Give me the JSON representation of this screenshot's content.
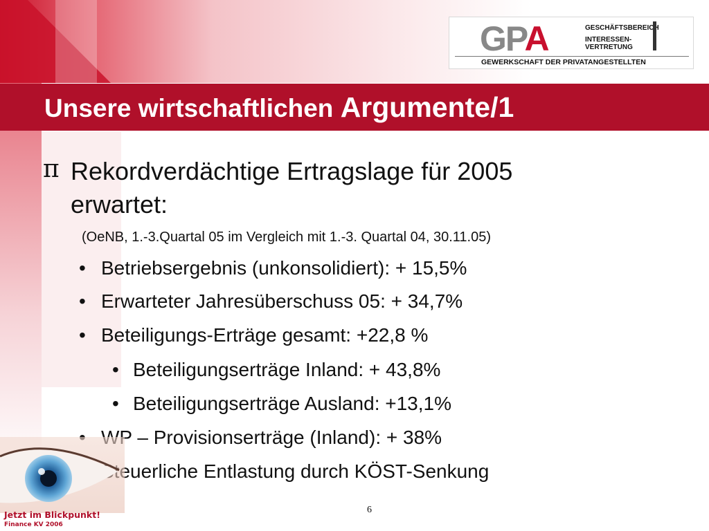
{
  "logo": {
    "letters_gp": "GP",
    "letters_a": "A",
    "line1": "GESCHÄFTSBEREICH",
    "line2": "INTERESSEN-",
    "line3": "VERTRETUNG",
    "subtitle": "GEWERKSCHAFT DER PRIVATANGESTELLTEN"
  },
  "slide": {
    "title_part1": "Unsere wirtschaftlichen ",
    "title_part2": "Argumente/1",
    "main_bullet_symbol": "π",
    "main_point_line1": "Rekordverdächtige Ertragslage für 2005",
    "main_point_line2": "erwartet:",
    "source": "(OeNB, 1.-3.Quartal 05 im Vergleich mit 1.-3. Quartal 04, 30.11.05)",
    "bullet_symbol": "•",
    "bullets": [
      "Betriebsergebnis (unkonsolidiert): + 15,5%",
      "Erwarteter Jahresüberschuss 05: + 34,7%",
      "Beteiligungs-Erträge gesamt: +22,8 %",
      "Beteiligungserträge Inland: + 43,8%",
      "Beteiligungserträge Ausland: +13,1%",
      "WP – Provisionserträge (Inland): + 38%",
      "Steuerliche Entlastung durch KÖST-Senkung"
    ],
    "page_number": "6"
  },
  "footer": {
    "tagline_line1": "Jetzt im Blickpunkt!",
    "tagline_line2": "Finance KV 2006"
  },
  "colors": {
    "brand_red": "#b0102a",
    "logo_grey": "#888888"
  }
}
